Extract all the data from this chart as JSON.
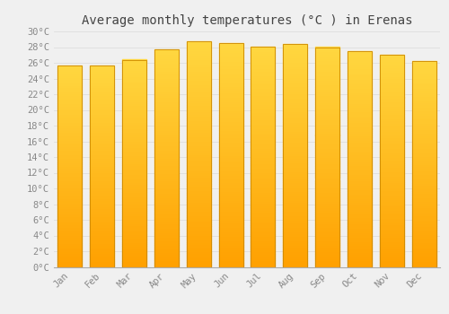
{
  "title": "Average monthly temperatures (°C ) in Erenas",
  "months": [
    "Jan",
    "Feb",
    "Mar",
    "Apr",
    "May",
    "Jun",
    "Jul",
    "Aug",
    "Sep",
    "Oct",
    "Nov",
    "Dec"
  ],
  "values": [
    25.7,
    25.7,
    26.4,
    27.7,
    28.7,
    28.5,
    28.1,
    28.4,
    28.0,
    27.5,
    27.0,
    26.2
  ],
  "bar_color_top": "#FFD740",
  "bar_color_bottom": "#FFA000",
  "bar_edge_color": "#CC8800",
  "background_color": "#F0F0F0",
  "grid_color": "#DDDDDD",
  "title_color": "#444444",
  "tick_label_color": "#888888",
  "ylim": [
    0,
    30
  ],
  "ytick_step": 2,
  "title_fontsize": 10,
  "tick_fontsize": 7.5,
  "bar_width": 0.75
}
